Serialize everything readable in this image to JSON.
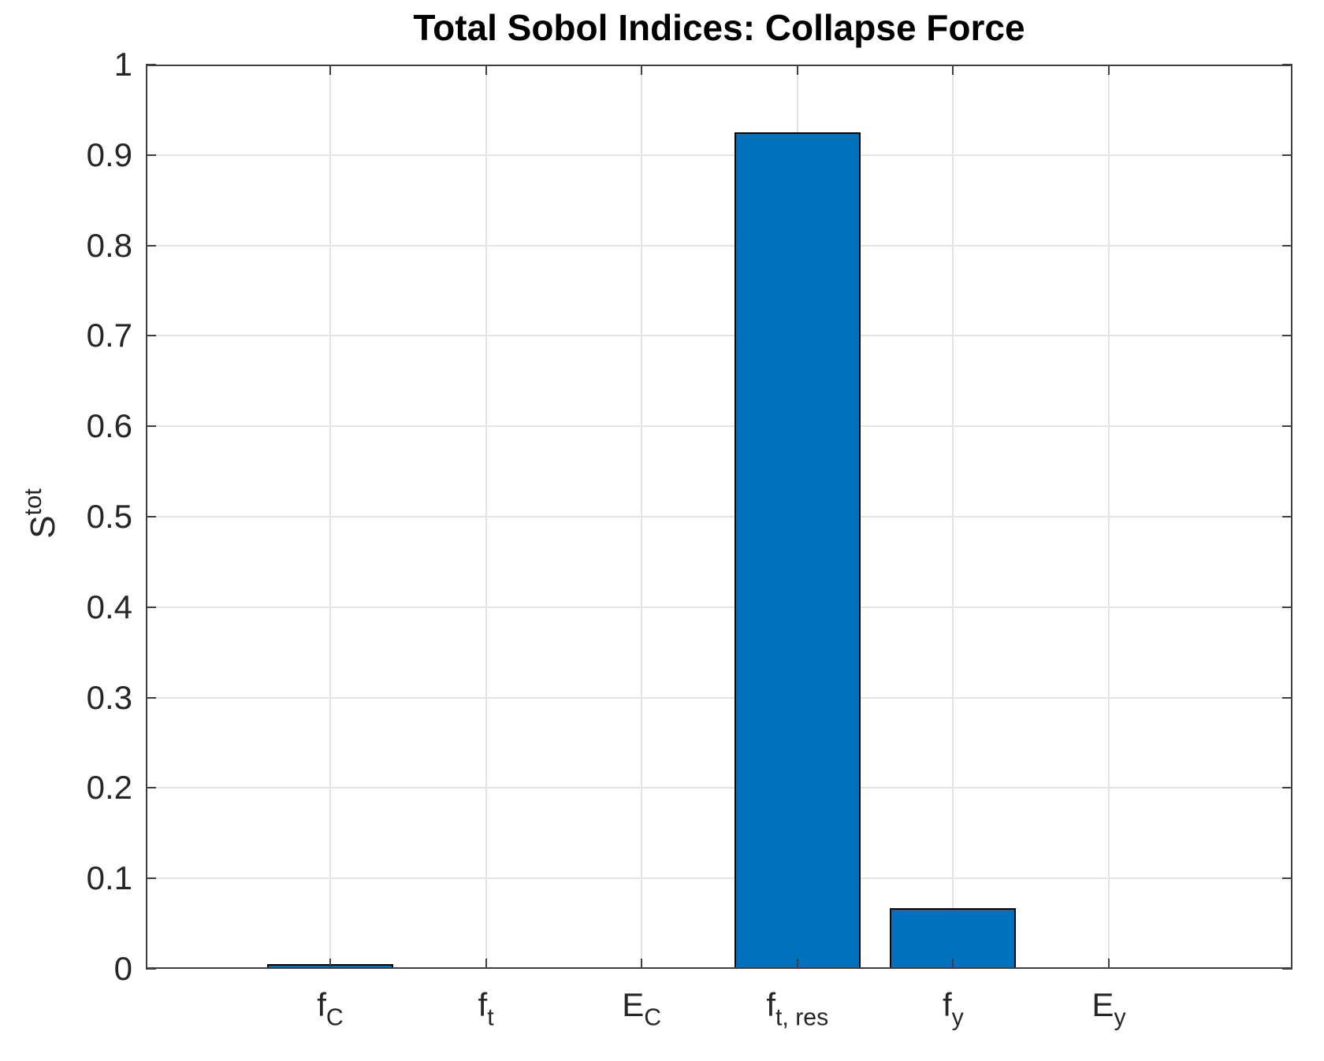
{
  "chart_data": {
    "type": "bar",
    "title": "Total Sobol Indices: Collapse Force",
    "ylabel": {
      "base": "S",
      "sup": "tot"
    },
    "xlabel": "",
    "categories": [
      {
        "base": "f",
        "sub": "C"
      },
      {
        "base": "f",
        "sub": "t"
      },
      {
        "base": "E",
        "sub": "C"
      },
      {
        "base": "f",
        "sub": "t, res"
      },
      {
        "base": "f",
        "sub": "y"
      },
      {
        "base": "E",
        "sub": "y"
      }
    ],
    "values": [
      0.005,
      0.0,
      0.002,
      0.925,
      0.067,
      0.0
    ],
    "ylim": [
      0,
      1
    ],
    "yticks": [
      0,
      0.1,
      0.2,
      0.3,
      0.4,
      0.5,
      0.6,
      0.7,
      0.8,
      0.9,
      1
    ],
    "ytick_labels": [
      "0",
      "0.1",
      "0.2",
      "0.3",
      "0.4",
      "0.5",
      "0.6",
      "0.7",
      "0.8",
      "0.9",
      "1"
    ],
    "grid": true,
    "legend": null,
    "colors": {
      "bar_fill": "#0072BD",
      "bar_edge": "#000000",
      "axis": "#3f3f3f",
      "grid": "#e4e4e4",
      "tick_label": "#262626",
      "title": "#000000",
      "background": "#ffffff"
    }
  }
}
